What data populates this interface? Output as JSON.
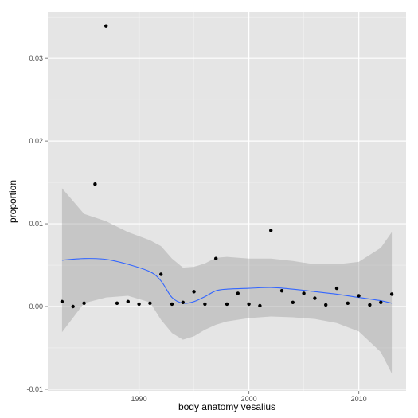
{
  "chart_data": {
    "type": "scatter",
    "title": "",
    "xlabel": "body anatomy vesalius",
    "ylabel": "proportion",
    "xlim": [
      1981.7,
      2014.3
    ],
    "ylim": [
      -0.0102,
      0.0356
    ],
    "x_ticks": [
      1990,
      2000,
      2010
    ],
    "x_tick_labels": [
      "1990",
      "2000",
      "2010"
    ],
    "y_ticks": [
      -0.01,
      0.0,
      0.01,
      0.02,
      0.03
    ],
    "y_tick_labels": [
      "-0.01",
      "0.00",
      "0.01",
      "0.02",
      "0.03"
    ],
    "grid": true,
    "points": [
      {
        "x": 1983,
        "y": 0.0006
      },
      {
        "x": 1984,
        "y": 0.0
      },
      {
        "x": 1985,
        "y": 0.0004
      },
      {
        "x": 1986,
        "y": 0.0148
      },
      {
        "x": 1987,
        "y": 0.0339
      },
      {
        "x": 1988,
        "y": 0.0004
      },
      {
        "x": 1989,
        "y": 0.0006
      },
      {
        "x": 1990,
        "y": 0.0003
      },
      {
        "x": 1991,
        "y": 0.0004
      },
      {
        "x": 1992,
        "y": 0.0039
      },
      {
        "x": 1993,
        "y": 0.0003
      },
      {
        "x": 1994,
        "y": 0.0005
      },
      {
        "x": 1995,
        "y": 0.0018
      },
      {
        "x": 1996,
        "y": 0.0003
      },
      {
        "x": 1997,
        "y": 0.0058
      },
      {
        "x": 1998,
        "y": 0.0003
      },
      {
        "x": 1999,
        "y": 0.0016
      },
      {
        "x": 2000,
        "y": 0.0003
      },
      {
        "x": 2001,
        "y": 0.0001
      },
      {
        "x": 2002,
        "y": 0.0092
      },
      {
        "x": 2003,
        "y": 0.0019
      },
      {
        "x": 2004,
        "y": 0.0005
      },
      {
        "x": 2005,
        "y": 0.0016
      },
      {
        "x": 2006,
        "y": 0.001
      },
      {
        "x": 2007,
        "y": 0.0002
      },
      {
        "x": 2008,
        "y": 0.0022
      },
      {
        "x": 2009,
        "y": 0.0004
      },
      {
        "x": 2010,
        "y": 0.0013
      },
      {
        "x": 2011,
        "y": 0.0002
      },
      {
        "x": 2012,
        "y": 0.0005
      },
      {
        "x": 2013,
        "y": 0.0015
      }
    ],
    "smooth": {
      "x": [
        1983,
        1985,
        1987,
        1989,
        1991,
        1992,
        1993,
        1994,
        1995,
        1996,
        1997,
        1998,
        2000,
        2002,
        2004,
        2006,
        2008,
        2010,
        2012,
        2013
      ],
      "y": [
        0.0056,
        0.0058,
        0.0057,
        0.0051,
        0.0042,
        0.0031,
        0.0011,
        0.0004,
        0.0006,
        0.0012,
        0.0019,
        0.0021,
        0.0022,
        0.0023,
        0.0021,
        0.0018,
        0.0015,
        0.0011,
        0.0007,
        0.0004
      ],
      "lower": [
        -0.0031,
        0.0004,
        0.0011,
        0.0013,
        0.0005,
        -0.0016,
        -0.0032,
        -0.004,
        -0.0036,
        -0.0028,
        -0.0022,
        -0.0018,
        -0.0014,
        -0.0012,
        -0.0013,
        -0.0015,
        -0.002,
        -0.003,
        -0.0055,
        -0.0081
      ],
      "upper": [
        0.0143,
        0.0112,
        0.0103,
        0.009,
        0.008,
        0.0073,
        0.0058,
        0.0047,
        0.0048,
        0.0052,
        0.0059,
        0.006,
        0.0058,
        0.0058,
        0.0055,
        0.0051,
        0.0051,
        0.0054,
        0.0071,
        0.009
      ]
    },
    "colors": {
      "panel": "#e5e5e5",
      "grid_major": "#ffffff",
      "grid_minor": "#f2f2f2",
      "band": "#999999",
      "line": "#3366ff",
      "point": "#000000"
    }
  }
}
